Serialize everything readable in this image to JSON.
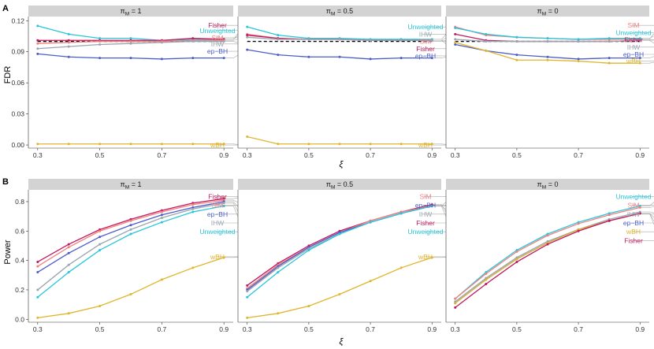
{
  "figure": {
    "panel_tags": [
      "A",
      "B"
    ],
    "ylabels": [
      "FDR",
      "Power"
    ],
    "xlabel": "ξ"
  },
  "colors": {
    "Fisher": "#c2185b",
    "Unweighted": "#26c6da",
    "SIM": "#f08080",
    "IHW": "#9aa5b1",
    "ep-BH": "#4a5cc9",
    "wBH": "#e0b52c",
    "neutral": "#444444"
  },
  "chart_data": [
    {
      "type": "line",
      "row": 0,
      "col": 0,
      "facet": "π_M = 1",
      "x": [
        0.3,
        0.4,
        0.5,
        0.6,
        0.7,
        0.8,
        0.9
      ],
      "xticks": [
        0.3,
        0.5,
        0.7,
        0.9
      ],
      "xlim": [
        0.27,
        0.93
      ],
      "ylim": [
        -0.003,
        0.124
      ],
      "yticks": [
        0.0,
        0.03,
        0.06,
        0.09,
        0.12
      ],
      "ylabel": "FDR",
      "xlabel": "ξ",
      "target_fdr": 0.1,
      "series": [
        {
          "name": "Unweighted",
          "values": [
            0.115,
            0.107,
            0.103,
            0.103,
            0.101,
            0.102,
            0.102
          ]
        },
        {
          "name": "Fisher",
          "values": [
            0.101,
            0.101,
            0.101,
            0.101,
            0.101,
            0.103,
            0.102
          ]
        },
        {
          "name": "SIM",
          "values": [
            0.098,
            0.099,
            0.1,
            0.1,
            0.1,
            0.101,
            0.101
          ]
        },
        {
          "name": "IHW",
          "values": [
            0.093,
            0.095,
            0.097,
            0.098,
            0.099,
            0.1,
            0.1
          ]
        },
        {
          "name": "ep-BH",
          "values": [
            0.088,
            0.085,
            0.084,
            0.084,
            0.083,
            0.084,
            0.084
          ]
        },
        {
          "name": "wBH",
          "values": [
            0.001,
            0.001,
            0.001,
            0.001,
            0.001,
            0.001,
            0.001
          ]
        }
      ],
      "labels": [
        {
          "name": "Fisher",
          "text": "Fisher",
          "y": 0.1155
        },
        {
          "name": "Unweighted",
          "text": "Unweighted",
          "y": 0.1105
        },
        {
          "name": "SIM",
          "text": "SIM",
          "y": 0.1035
        },
        {
          "name": "IHW",
          "text": "IHW",
          "y": 0.0975
        },
        {
          "name": "ep-BH",
          "text": "ep−BH",
          "y": 0.0905
        },
        {
          "name": "wBH",
          "text": "wBH",
          "y": 0.0
        }
      ]
    },
    {
      "type": "line",
      "row": 0,
      "col": 1,
      "facet": "π_M = 0.5",
      "x": [
        0.3,
        0.4,
        0.5,
        0.6,
        0.7,
        0.8,
        0.9
      ],
      "xticks": [
        0.3,
        0.5,
        0.7,
        0.9
      ],
      "xlim": [
        0.27,
        0.93
      ],
      "ylim": [
        -0.003,
        0.124
      ],
      "yticks": [
        0.0,
        0.03,
        0.06,
        0.09,
        0.12
      ],
      "target_fdr": 0.1,
      "series": [
        {
          "name": "Unweighted",
          "values": [
            0.114,
            0.106,
            0.103,
            0.103,
            0.102,
            0.102,
            0.102
          ]
        },
        {
          "name": "SIM",
          "values": [
            0.107,
            0.103,
            0.102,
            0.102,
            0.101,
            0.101,
            0.101
          ]
        },
        {
          "name": "Fisher",
          "values": [
            0.106,
            0.103,
            0.102,
            0.102,
            0.101,
            0.101,
            0.101
          ]
        },
        {
          "name": "IHW",
          "values": [
            0.104,
            0.102,
            0.102,
            0.102,
            0.101,
            0.101,
            0.101
          ]
        },
        {
          "name": "ep-BH",
          "values": [
            0.092,
            0.087,
            0.085,
            0.085,
            0.083,
            0.084,
            0.084
          ]
        },
        {
          "name": "wBH",
          "values": [
            0.008,
            0.001,
            0.001,
            0.001,
            0.001,
            0.001,
            0.001
          ]
        }
      ],
      "labels": [
        {
          "name": "Unweighted",
          "text": "Unweighted",
          "y": 0.114
        },
        {
          "name": "IHW",
          "text": "IHW",
          "y": 0.107
        },
        {
          "name": "SIM",
          "text": "SIM",
          "y": 0.1
        },
        {
          "name": "Fisher",
          "text": "Fisher",
          "y": 0.093
        },
        {
          "name": "ep-BH",
          "text": "ep−BH",
          "y": 0.086
        },
        {
          "name": "wBH",
          "text": "wBH",
          "y": 0.0
        }
      ]
    },
    {
      "type": "line",
      "row": 0,
      "col": 2,
      "facet": "π_M = 0",
      "x": [
        0.3,
        0.4,
        0.5,
        0.6,
        0.7,
        0.8,
        0.9
      ],
      "xticks": [
        0.3,
        0.5,
        0.7,
        0.9
      ],
      "xlim": [
        0.27,
        0.93
      ],
      "ylim": [
        -0.003,
        0.124
      ],
      "yticks": [
        0.0,
        0.03,
        0.06,
        0.09,
        0.12
      ],
      "target_fdr": 0.1,
      "series": [
        {
          "name": "SIM",
          "values": [
            0.114,
            0.106,
            0.104,
            0.103,
            0.102,
            0.102,
            0.102
          ]
        },
        {
          "name": "Unweighted",
          "values": [
            0.113,
            0.107,
            0.104,
            0.103,
            0.102,
            0.103,
            0.103
          ]
        },
        {
          "name": "Fisher",
          "values": [
            0.107,
            0.101,
            0.1,
            0.1,
            0.1,
            0.1,
            0.101
          ]
        },
        {
          "name": "IHW",
          "values": [
            0.102,
            0.1,
            0.1,
            0.1,
            0.1,
            0.1,
            0.101
          ]
        },
        {
          "name": "ep-BH",
          "values": [
            0.097,
            0.091,
            0.087,
            0.085,
            0.083,
            0.084,
            0.084
          ]
        },
        {
          "name": "wBH",
          "values": [
            0.099,
            0.091,
            0.082,
            0.082,
            0.081,
            0.079,
            0.079
          ]
        }
      ],
      "labels": [
        {
          "name": "SIM",
          "text": "SIM",
          "y": 0.1155
        },
        {
          "name": "Unweighted",
          "text": "Unweighted",
          "y": 0.1085
        },
        {
          "name": "Fisher",
          "text": "Fisher",
          "y": 0.1015
        },
        {
          "name": "IHW",
          "text": "IHW",
          "y": 0.0945
        },
        {
          "name": "ep-BH",
          "text": "ep−BH",
          "y": 0.0875
        },
        {
          "name": "wBH",
          "text": "wBH",
          "y": 0.081
        }
      ]
    },
    {
      "type": "line",
      "row": 1,
      "col": 0,
      "facet": "π_M = 1",
      "x": [
        0.3,
        0.4,
        0.5,
        0.6,
        0.7,
        0.8,
        0.9
      ],
      "xticks": [
        0.3,
        0.5,
        0.7,
        0.9
      ],
      "xlim": [
        0.27,
        0.93
      ],
      "ylim": [
        -0.02,
        0.88
      ],
      "yticks": [
        0.0,
        0.2,
        0.4,
        0.6,
        0.8
      ],
      "ylabel": "Power",
      "xlabel": "ξ",
      "series": [
        {
          "name": "Fisher",
          "values": [
            0.39,
            0.51,
            0.61,
            0.68,
            0.74,
            0.79,
            0.82
          ]
        },
        {
          "name": "SIM",
          "values": [
            0.36,
            0.49,
            0.6,
            0.67,
            0.73,
            0.78,
            0.81
          ]
        },
        {
          "name": "ep-BH",
          "values": [
            0.32,
            0.45,
            0.56,
            0.64,
            0.71,
            0.76,
            0.8
          ]
        },
        {
          "name": "IHW",
          "values": [
            0.2,
            0.37,
            0.51,
            0.61,
            0.69,
            0.75,
            0.79
          ]
        },
        {
          "name": "Unweighted",
          "values": [
            0.15,
            0.32,
            0.47,
            0.58,
            0.66,
            0.73,
            0.77
          ]
        },
        {
          "name": "wBH",
          "values": [
            0.01,
            0.04,
            0.09,
            0.17,
            0.27,
            0.35,
            0.42
          ]
        }
      ],
      "labels": [
        {
          "name": "Fisher",
          "text": "Fisher",
          "y": 0.835
        },
        {
          "name": "SIM",
          "text": "SIM",
          "y": 0.775
        },
        {
          "name": "ep-BH",
          "text": "ep−BH",
          "y": 0.715
        },
        {
          "name": "IHW",
          "text": "IHW",
          "y": 0.655
        },
        {
          "name": "Unweighted",
          "text": "Unweighted",
          "y": 0.595
        },
        {
          "name": "wBH",
          "text": "wBH",
          "y": 0.425
        }
      ]
    },
    {
      "type": "line",
      "row": 1,
      "col": 1,
      "facet": "π_M = 0.5",
      "x": [
        0.3,
        0.4,
        0.5,
        0.6,
        0.7,
        0.8,
        0.9
      ],
      "xticks": [
        0.3,
        0.5,
        0.7,
        0.9
      ],
      "xlim": [
        0.27,
        0.93
      ],
      "ylim": [
        -0.02,
        0.88
      ],
      "yticks": [
        0.0,
        0.2,
        0.4,
        0.6,
        0.8
      ],
      "series": [
        {
          "name": "Fisher",
          "values": [
            0.23,
            0.38,
            0.5,
            0.6,
            0.67,
            0.73,
            0.78
          ]
        },
        {
          "name": "SIM",
          "values": [
            0.21,
            0.37,
            0.49,
            0.59,
            0.67,
            0.73,
            0.77
          ]
        },
        {
          "name": "ep-BH",
          "values": [
            0.2,
            0.36,
            0.49,
            0.59,
            0.66,
            0.72,
            0.77
          ]
        },
        {
          "name": "IHW",
          "values": [
            0.19,
            0.35,
            0.48,
            0.58,
            0.66,
            0.72,
            0.77
          ]
        },
        {
          "name": "Unweighted",
          "values": [
            0.15,
            0.32,
            0.47,
            0.58,
            0.66,
            0.72,
            0.77
          ]
        },
        {
          "name": "wBH",
          "values": [
            0.01,
            0.04,
            0.09,
            0.17,
            0.26,
            0.35,
            0.42
          ]
        }
      ],
      "labels": [
        {
          "name": "SIM",
          "text": "SIM",
          "y": 0.835
        },
        {
          "name": "ep-BH",
          "text": "ep−BH",
          "y": 0.775
        },
        {
          "name": "IHW",
          "text": "IHW",
          "y": 0.715
        },
        {
          "name": "Fisher",
          "text": "Fisher",
          "y": 0.655
        },
        {
          "name": "Unweighted",
          "text": "Unweighted",
          "y": 0.595
        },
        {
          "name": "wBH",
          "text": "wBH",
          "y": 0.425
        }
      ]
    },
    {
      "type": "line",
      "row": 1,
      "col": 2,
      "facet": "π_M = 0",
      "x": [
        0.3,
        0.4,
        0.5,
        0.6,
        0.7,
        0.8,
        0.9
      ],
      "xticks": [
        0.3,
        0.5,
        0.7,
        0.9
      ],
      "xlim": [
        0.27,
        0.93
      ],
      "ylim": [
        -0.02,
        0.88
      ],
      "yticks": [
        0.0,
        0.2,
        0.4,
        0.6,
        0.8
      ],
      "series": [
        {
          "name": "Unweighted",
          "values": [
            0.14,
            0.32,
            0.47,
            0.58,
            0.66,
            0.72,
            0.77
          ]
        },
        {
          "name": "SIM",
          "values": [
            0.14,
            0.31,
            0.46,
            0.57,
            0.65,
            0.71,
            0.76
          ]
        },
        {
          "name": "IHW",
          "values": [
            0.12,
            0.28,
            0.42,
            0.53,
            0.61,
            0.68,
            0.73
          ]
        },
        {
          "name": "ep-BH",
          "values": [
            0.11,
            0.27,
            0.41,
            0.52,
            0.61,
            0.67,
            0.72
          ]
        },
        {
          "name": "wBH",
          "values": [
            0.11,
            0.27,
            0.41,
            0.52,
            0.61,
            0.67,
            0.72
          ]
        },
        {
          "name": "Fisher",
          "values": [
            0.08,
            0.24,
            0.39,
            0.51,
            0.6,
            0.67,
            0.72
          ]
        }
      ],
      "labels": [
        {
          "name": "Unweighted",
          "text": "Unweighted",
          "y": 0.835
        },
        {
          "name": "SIM",
          "text": "SIM",
          "y": 0.775
        },
        {
          "name": "IHW",
          "text": "IHW",
          "y": 0.715
        },
        {
          "name": "ep-BH",
          "text": "ep−BH",
          "y": 0.655
        },
        {
          "name": "wBH",
          "text": "wBH",
          "y": 0.595
        },
        {
          "name": "Fisher",
          "text": "Fisher",
          "y": 0.535
        }
      ]
    }
  ]
}
